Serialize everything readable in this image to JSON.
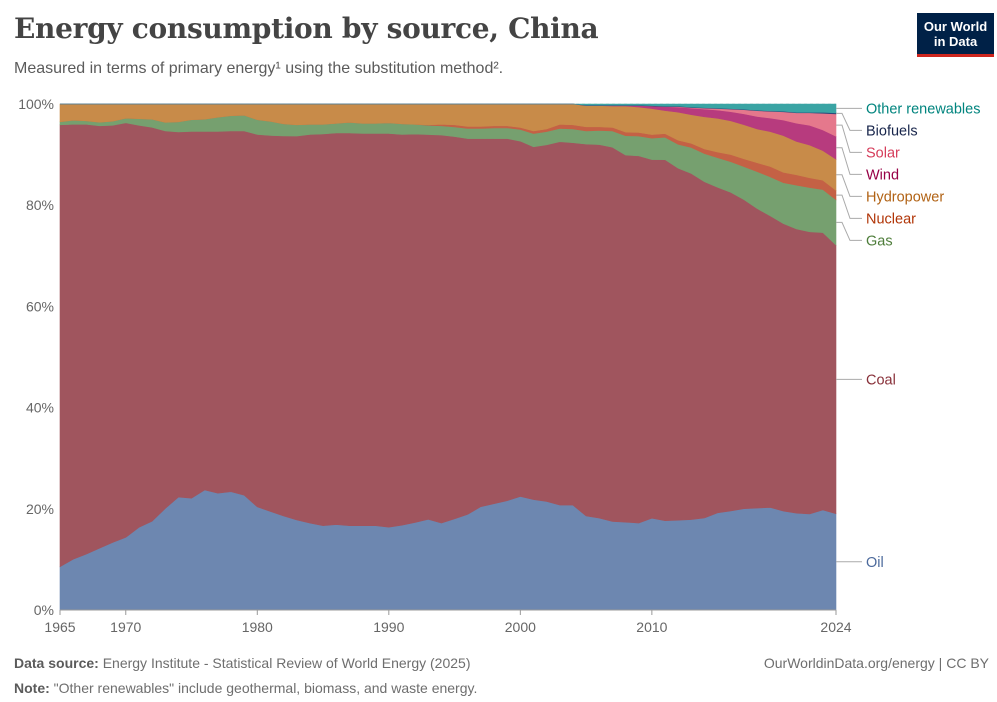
{
  "header": {
    "title": "Energy consumption by source, China",
    "subtitle": "Measured in terms of primary energy¹ using the substitution method².",
    "logo_line1": "Our World",
    "logo_line2": "in Data"
  },
  "footer": {
    "source_label": "Data source:",
    "source_text": " Energy Institute - Statistical Review of World Energy (2025)",
    "note_label": "Note:",
    "note_text": " \"Other renewables\" include geothermal, biomass, and waste energy.",
    "credit": "OurWorldinData.org/energy | CC BY"
  },
  "chart_data": {
    "type": "area",
    "stacked": true,
    "normalized": true,
    "y_tick_labels": [
      "0%",
      "20%",
      "40%",
      "60%",
      "80%",
      "100%"
    ],
    "ylim": [
      0,
      100
    ],
    "xlim": [
      1965,
      2024
    ],
    "x_tick_labels": [
      "1965",
      "1970",
      "1980",
      "1990",
      "2000",
      "2010",
      "2024"
    ],
    "x_tick_values": [
      1965,
      1970,
      1980,
      1990,
      2000,
      2010,
      2024
    ],
    "x": [
      1965,
      1966,
      1967,
      1968,
      1969,
      1970,
      1971,
      1972,
      1973,
      1974,
      1975,
      1976,
      1977,
      1978,
      1979,
      1980,
      1981,
      1982,
      1983,
      1984,
      1985,
      1986,
      1987,
      1988,
      1989,
      1990,
      1991,
      1992,
      1993,
      1994,
      1995,
      1996,
      1997,
      1998,
      1999,
      2000,
      2001,
      2002,
      2003,
      2004,
      2005,
      2006,
      2007,
      2008,
      2009,
      2010,
      2011,
      2012,
      2013,
      2014,
      2015,
      2016,
      2017,
      2018,
      2019,
      2020,
      2021,
      2022,
      2023,
      2024
    ],
    "series": [
      {
        "name": "Oil",
        "color": "#6D87B0",
        "label_color": "#4C6A9C",
        "values": [
          8.5,
          10,
          11,
          12.2,
          13.3,
          14.3,
          16.3,
          17.5,
          20,
          22.2,
          22,
          23.6,
          23,
          23.3,
          22.6,
          20.3,
          19.4,
          18.5,
          17.7,
          17.1,
          16.6,
          16.8,
          16.6,
          16.6,
          16.6,
          16.3,
          16.7,
          17.2,
          17.8,
          17.1,
          17.9,
          18.8,
          20.3,
          20.9,
          21.5,
          22.3,
          21.7,
          21.3,
          20.6,
          20.6,
          18.5,
          18.1,
          17.4,
          17.2,
          17.1,
          18,
          17.5,
          17.6,
          17.7,
          18,
          19,
          19.4,
          19.6,
          19.6,
          19.7,
          19.1,
          18.6,
          18.5,
          19.3,
          18.5
        ]
      },
      {
        "name": "Coal",
        "color": "#A0555E",
        "label_color": "#883039",
        "values": [
          86.9,
          85.6,
          84.6,
          83.4,
          82.2,
          81.7,
          79.3,
          77.7,
          74.4,
          71.8,
          72.2,
          70.5,
          71.2,
          71.1,
          71.7,
          73.3,
          74,
          74.8,
          75.5,
          76.5,
          77.1,
          77,
          77.3,
          77.2,
          77.2,
          77.5,
          76.9,
          76.3,
          75.6,
          76.3,
          75.1,
          73.8,
          72.3,
          71.8,
          71.2,
          69.8,
          69.3,
          70,
          71.4,
          71.2,
          73.2,
          73.6,
          73.6,
          71.9,
          72.2,
          70.3,
          70.7,
          69,
          67.7,
          65.7,
          63.7,
          62.4,
          59.8,
          57.6,
          56,
          55.5,
          54.6,
          54.3,
          53.5,
          51.6
        ]
      },
      {
        "name": "Gas",
        "color": "#76A06F",
        "label_color": "#4E7D3A",
        "values": [
          0.6,
          0.8,
          0.7,
          0.7,
          0.8,
          0.9,
          1.3,
          1.6,
          1.7,
          2,
          2.3,
          2.4,
          2.8,
          3,
          3.1,
          2.9,
          2.8,
          2.4,
          2.2,
          2,
          1.9,
          1.9,
          2.1,
          2,
          2,
          2.1,
          2.1,
          1.9,
          1.8,
          1.8,
          1.9,
          2,
          2,
          2.1,
          2.1,
          2.3,
          2.6,
          2.6,
          2.6,
          2.7,
          2.6,
          2.8,
          3.2,
          3.8,
          3.9,
          4.2,
          4.4,
          4.7,
          5.1,
          5.5,
          5.8,
          6,
          6.4,
          7.1,
          7.5,
          7.9,
          8.4,
          8.5,
          8.3,
          8.7
        ]
      },
      {
        "name": "Nuclear",
        "color": "#C46145",
        "label_color": "#B13507",
        "values": [
          0,
          0,
          0,
          0,
          0,
          0,
          0,
          0,
          0,
          0,
          0,
          0,
          0,
          0,
          0,
          0,
          0,
          0,
          0,
          0,
          0,
          0,
          0,
          0,
          0,
          0,
          0,
          0,
          0.1,
          0.3,
          0.4,
          0.4,
          0.4,
          0.4,
          0.4,
          0.4,
          0.5,
          0.5,
          0.8,
          0.8,
          0.8,
          0.7,
          0.7,
          0.7,
          0.7,
          0.7,
          0.7,
          0.8,
          0.8,
          0.9,
          1.1,
          1.4,
          1.5,
          1.7,
          2,
          2,
          2,
          1.9,
          1.8,
          1.8
        ]
      },
      {
        "name": "Hydropower",
        "color": "#C88B49",
        "label_color": "#B16214",
        "values": [
          3.5,
          3.2,
          3.3,
          3.6,
          3.4,
          2.8,
          2.9,
          3,
          3.6,
          3.5,
          3.1,
          3,
          2.6,
          2.3,
          2.2,
          3.1,
          3.4,
          3.9,
          4.1,
          4,
          4,
          3.8,
          3.6,
          3.8,
          3.8,
          3.7,
          3.9,
          4,
          4.1,
          4,
          4.1,
          4.4,
          4.4,
          4.3,
          4.3,
          4.6,
          5.3,
          4.9,
          4,
          4.1,
          4.2,
          4.2,
          4.2,
          5.1,
          5,
          5.1,
          4.5,
          5.5,
          5.6,
          6.3,
          6.6,
          6.6,
          6.6,
          6.5,
          6.7,
          7.1,
          6.4,
          6.3,
          5.7,
          6
        ]
      },
      {
        "name": "Wind",
        "color": "#B73B7E",
        "label_color": "#970046",
        "values": [
          0,
          0,
          0,
          0,
          0,
          0,
          0,
          0,
          0,
          0,
          0,
          0,
          0,
          0,
          0,
          0,
          0,
          0,
          0,
          0,
          0,
          0,
          0,
          0,
          0,
          0,
          0,
          0,
          0,
          0,
          0,
          0,
          0,
          0,
          0,
          0,
          0,
          0,
          0,
          0,
          0,
          0,
          0.1,
          0.1,
          0.3,
          0.5,
          0.8,
          1,
          1.3,
          1.5,
          1.6,
          1.8,
          2.1,
          2.4,
          2.6,
          3,
          3.5,
          3.8,
          4,
          4.4
        ]
      },
      {
        "name": "Solar",
        "color": "#E5788C",
        "label_color": "#D63D5B",
        "values": [
          0,
          0,
          0,
          0,
          0,
          0,
          0,
          0,
          0,
          0,
          0,
          0,
          0,
          0,
          0,
          0,
          0,
          0,
          0,
          0,
          0,
          0,
          0,
          0,
          0,
          0,
          0,
          0,
          0,
          0,
          0,
          0,
          0,
          0,
          0,
          0,
          0,
          0,
          0,
          0,
          0,
          0,
          0,
          0,
          0,
          0,
          0,
          0.1,
          0.1,
          0.2,
          0.3,
          0.5,
          0.8,
          1.1,
          1.3,
          1.6,
          2,
          2.4,
          3.2,
          4.3
        ]
      },
      {
        "name": "Biofuels",
        "color": "#2C4A7A",
        "label_color": "#18254B",
        "values": [
          0,
          0,
          0,
          0,
          0,
          0,
          0,
          0,
          0,
          0,
          0,
          0,
          0,
          0,
          0,
          0,
          0,
          0,
          0,
          0,
          0,
          0,
          0,
          0,
          0,
          0,
          0,
          0,
          0,
          0,
          0,
          0,
          0,
          0,
          0,
          0,
          0,
          0,
          0,
          0,
          0.1,
          0.1,
          0.1,
          0.1,
          0.1,
          0.1,
          0.1,
          0.1,
          0.1,
          0.1,
          0.1,
          0.1,
          0.1,
          0.1,
          0.1,
          0.1,
          0.1,
          0.1,
          0.2,
          0.2
        ]
      },
      {
        "name": "Other renewables",
        "color": "#3AA4A4",
        "label_color": "#00847E",
        "values": [
          0,
          0,
          0,
          0,
          0,
          0,
          0,
          0,
          0,
          0,
          0,
          0,
          0,
          0,
          0,
          0,
          0,
          0,
          0,
          0,
          0,
          0,
          0,
          0,
          0,
          0,
          0,
          0,
          0,
          0,
          0,
          0,
          0,
          0,
          0,
          0,
          0,
          0,
          0,
          0,
          0.2,
          0.2,
          0.2,
          0.2,
          0.2,
          0.3,
          0.4,
          0.4,
          0.6,
          0.7,
          0.8,
          0.9,
          1,
          1.2,
          1.3,
          1.4,
          1.6,
          1.6,
          1.6,
          1.7
        ]
      }
    ],
    "legend_placement": "right (inline labels)",
    "grid": "horizontal dashed"
  }
}
